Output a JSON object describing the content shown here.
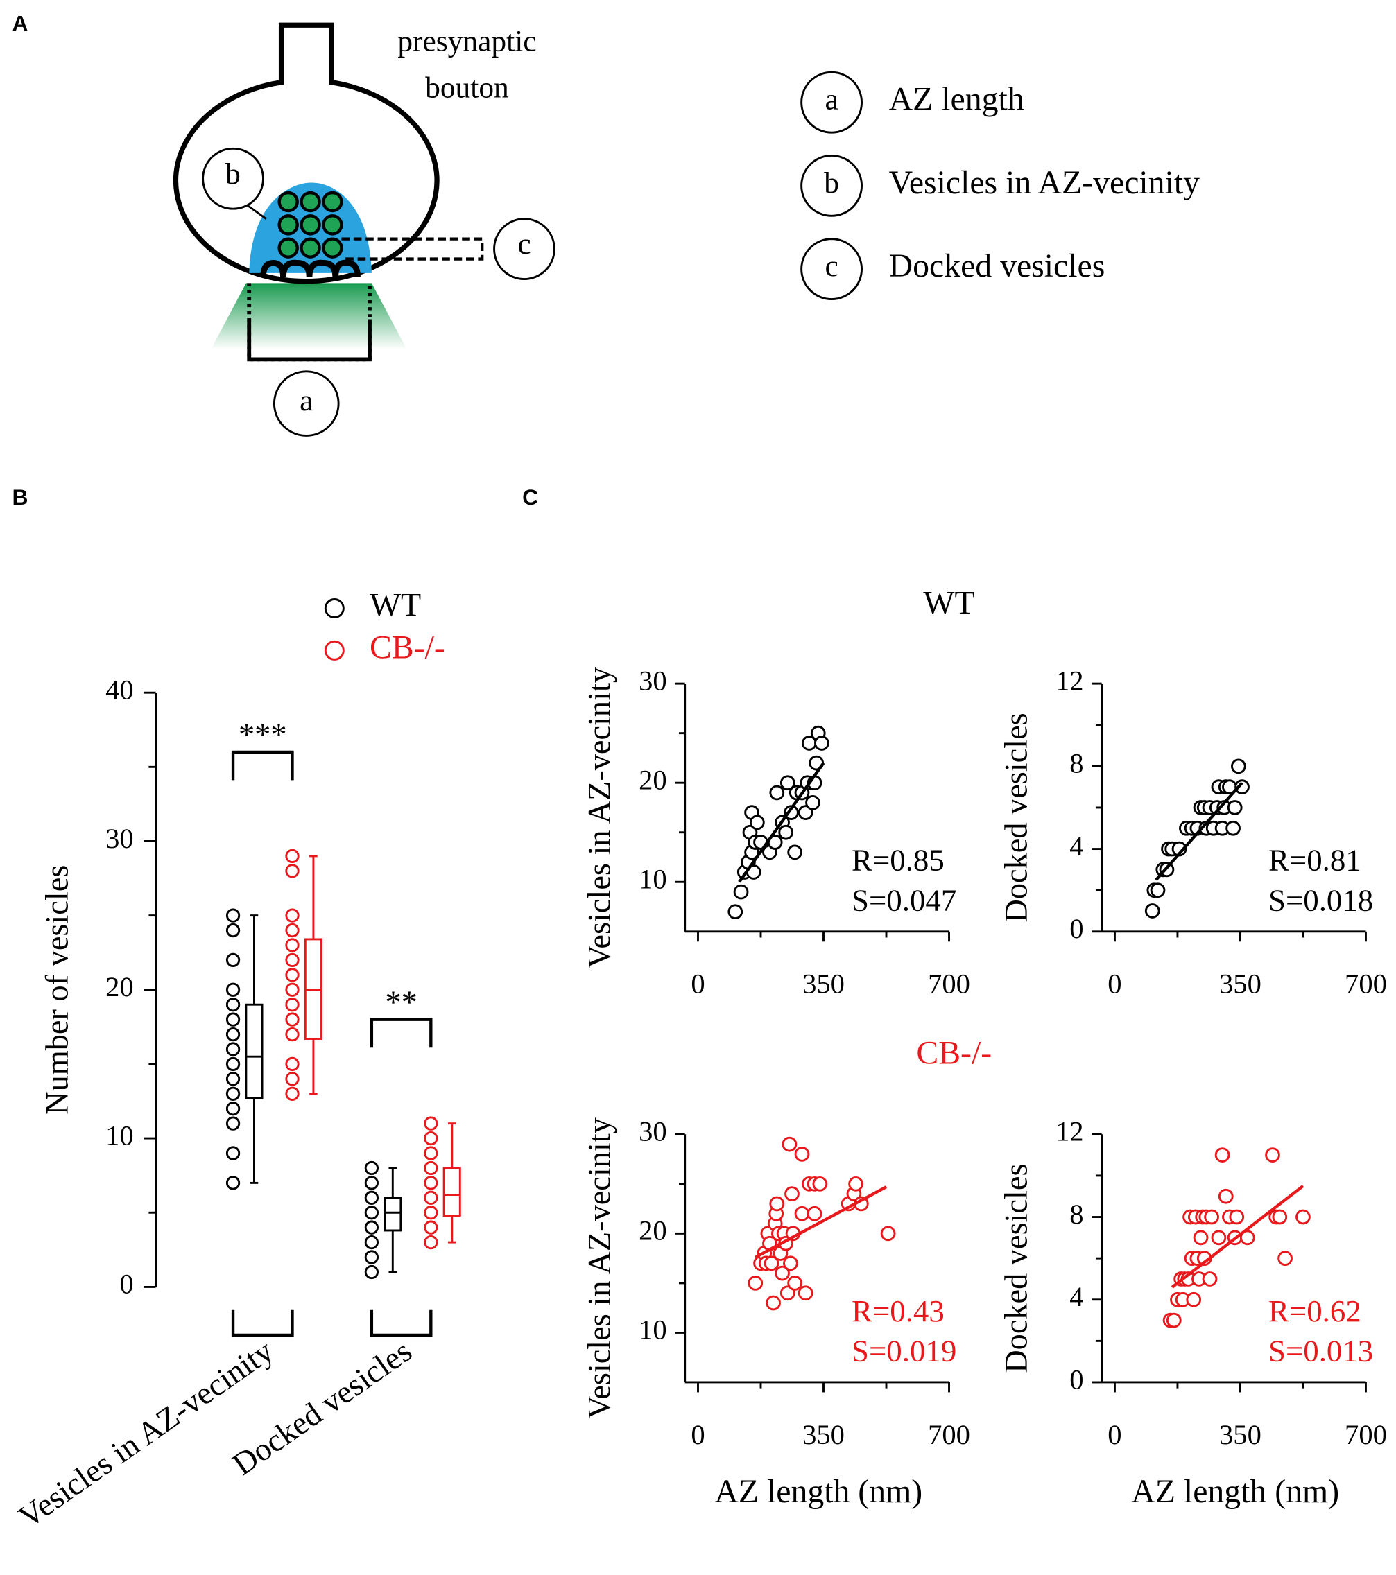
{
  "panel_labels": [
    "A",
    "B",
    "C"
  ],
  "diagram": {
    "title": [
      "presynaptic",
      "bouton"
    ],
    "markers": [
      "a",
      "b",
      "c"
    ],
    "legend": [
      {
        "key": "a",
        "label": "AZ length"
      },
      {
        "key": "b",
        "label": "Vesicles in AZ-vecinity"
      },
      {
        "key": "c",
        "label": "Docked vesicles"
      }
    ]
  },
  "group_titles": [
    {
      "text": "WT",
      "color": "#000000"
    },
    {
      "text": "CB-/-",
      "color": "#e8191c"
    }
  ],
  "chart_data": [
    {
      "type": "box",
      "ylabel": "Number of vesicles",
      "categories": [
        "Vesicles in AZ-vecinity",
        "Docked vesicles"
      ],
      "ylim": [
        0,
        40
      ],
      "yticks": [
        0,
        10,
        20,
        30,
        40
      ],
      "yminor_ticks": [
        5,
        15,
        25,
        35
      ],
      "significance": [
        "***",
        "**"
      ],
      "series": [
        {
          "name": "WT",
          "color": "#000000",
          "points": [
            [
              7,
              9,
              11,
              12,
              13,
              14,
              15,
              16,
              17,
              18,
              19,
              20,
              22,
              24,
              25
            ],
            [
              1,
              2,
              3,
              4,
              5,
              6,
              7,
              8
            ]
          ],
          "box": [
            {
              "min": 7,
              "q1": 12.7,
              "median": 15.5,
              "q3": 19,
              "max": 25
            },
            {
              "min": 1,
              "q1": 3.8,
              "median": 5,
              "q3": 6,
              "max": 8
            }
          ]
        },
        {
          "name": "CB-/-",
          "color": "#e8191c",
          "points": [
            [
              13,
              14,
              15,
              17,
              18,
              19,
              20,
              21,
              22,
              23,
              24,
              25,
              28,
              29
            ],
            [
              3,
              4,
              5,
              6,
              7,
              8,
              9,
              10,
              11
            ]
          ],
          "box": [
            {
              "min": 13,
              "q1": 16.7,
              "median": 20,
              "q3": 23.4,
              "max": 29
            },
            {
              "min": 3,
              "q1": 4.8,
              "median": 6.2,
              "q3": 8,
              "max": 11
            }
          ]
        }
      ]
    },
    {
      "type": "scatter",
      "ylabel": "Vesicles in AZ-vecinity",
      "color": "#000000",
      "xlim": [
        0,
        700
      ],
      "xticks": [
        0,
        350,
        700
      ],
      "xminor_ticks": [
        175,
        525
      ],
      "ylim": [
        5,
        30
      ],
      "yticks": [
        10,
        20,
        30
      ],
      "yminor_ticks": [
        15,
        25
      ],
      "x": [
        104,
        120,
        130,
        140,
        150,
        155,
        145,
        160,
        150,
        165,
        175,
        200,
        215,
        220,
        235,
        245,
        250,
        260,
        270,
        275,
        290,
        300,
        305,
        310,
        320,
        325,
        335,
        345,
        330
      ],
      "y": [
        7,
        9,
        11,
        12,
        13,
        11,
        15,
        14,
        17,
        16,
        14,
        13,
        14,
        19,
        16,
        15,
        20,
        17,
        13,
        19,
        19,
        17,
        20,
        24,
        18,
        20,
        25,
        24,
        22
      ],
      "fit": {
        "x": [
          115,
          350
        ],
        "y": [
          10,
          22
        ]
      },
      "annotations": [
        "R=0.85",
        "S=0.047"
      ]
    },
    {
      "type": "scatter",
      "ylabel": "Docked vesicles",
      "color": "#000000",
      "xlim": [
        0,
        700
      ],
      "xticks": [
        0,
        350,
        700
      ],
      "xminor_ticks": [
        175,
        525
      ],
      "ylim": [
        0,
        12
      ],
      "yticks": [
        0,
        4,
        8,
        12
      ],
      "yminor_ticks": [
        2,
        6,
        10
      ],
      "x": [
        105,
        110,
        120,
        135,
        145,
        150,
        160,
        180,
        200,
        215,
        230,
        240,
        250,
        255,
        265,
        275,
        285,
        290,
        300,
        305,
        310,
        320,
        330,
        335,
        345,
        355
      ],
      "y": [
        1,
        2,
        2,
        3,
        3,
        4,
        4,
        4,
        5,
        5,
        5,
        6,
        6,
        5,
        6,
        5,
        6,
        7,
        5,
        6,
        7,
        7,
        5,
        6,
        8,
        7
      ],
      "fit": {
        "x": [
          115,
          355
        ],
        "y": [
          2.5,
          7.2
        ]
      },
      "annotations": [
        "R=0.81",
        "S=0.018"
      ]
    },
    {
      "type": "scatter",
      "ylabel": "Vesicles in AZ-vecinity",
      "xlabel": "AZ length (nm)",
      "color": "#e8191c",
      "xlim": [
        0,
        700
      ],
      "xticks": [
        0,
        350,
        700
      ],
      "xminor_ticks": [
        175,
        525
      ],
      "ylim": [
        5,
        30
      ],
      "yticks": [
        10,
        20,
        30
      ],
      "yminor_ticks": [
        15,
        25
      ],
      "x": [
        160,
        175,
        185,
        190,
        195,
        200,
        205,
        210,
        215,
        218,
        220,
        225,
        230,
        235,
        240,
        245,
        250,
        255,
        258,
        262,
        265,
        270,
        290,
        290,
        300,
        310,
        325,
        340,
        420,
        435,
        440,
        455,
        530,
        325
      ],
      "y": [
        15,
        17,
        18,
        17,
        20,
        19,
        17,
        13,
        21,
        22,
        23,
        20,
        18,
        16,
        20,
        19,
        14,
        29,
        17,
        24,
        20,
        15,
        22,
        28,
        14,
        25,
        25,
        25,
        23,
        24,
        25,
        23,
        20,
        22
      ],
      "fit": {
        "x": [
          160,
          525
        ],
        "y": [
          17.6,
          24.7
        ]
      },
      "annotations": [
        "R=0.43",
        "S=0.019"
      ]
    },
    {
      "type": "scatter",
      "ylabel": "Docked vesicles",
      "xlabel": "AZ length (nm)",
      "color": "#e8191c",
      "xlim": [
        0,
        700
      ],
      "xticks": [
        0,
        350,
        700
      ],
      "xminor_ticks": [
        175,
        525
      ],
      "ylim": [
        0,
        12
      ],
      "yticks": [
        0,
        4,
        8,
        12
      ],
      "yminor_ticks": [
        2,
        6,
        10
      ],
      "x": [
        155,
        165,
        175,
        185,
        190,
        195,
        205,
        210,
        215,
        220,
        225,
        230,
        235,
        240,
        245,
        250,
        255,
        270,
        290,
        300,
        310,
        320,
        335,
        340,
        370,
        440,
        450,
        460,
        475,
        525,
        265
      ],
      "y": [
        3,
        3,
        4,
        5,
        4,
        5,
        5,
        8,
        6,
        4,
        8,
        6,
        5,
        7,
        8,
        6,
        8,
        8,
        7,
        11,
        9,
        8,
        7,
        8,
        7,
        11,
        8,
        8,
        6,
        8,
        5
      ],
      "fit": {
        "x": [
          160,
          525
        ],
        "y": [
          4.6,
          9.5
        ]
      },
      "annotations": [
        "R=0.62",
        "S=0.013"
      ]
    }
  ]
}
